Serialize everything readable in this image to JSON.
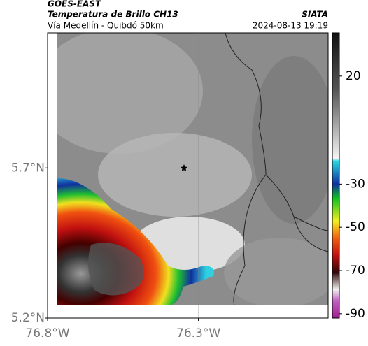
{
  "header": {
    "satellite": "GOES-EAST",
    "product": "Temperatura de Brillo CH13",
    "subtitle": "Vía Medellín - Quibdó 50km",
    "source": "SIATA",
    "timestamp": "2024-08-13 19:19"
  },
  "map": {
    "xlim": [
      -76.8,
      -75.87
    ],
    "ylim": [
      5.2,
      6.15
    ],
    "xticks": [
      {
        "value": -76.8,
        "label": "76.8°W"
      },
      {
        "value": -76.3,
        "label": "76.3°W"
      }
    ],
    "yticks": [
      {
        "value": 5.2,
        "label": "5.2°N"
      },
      {
        "value": 5.7,
        "label": "5.7°N"
      }
    ],
    "grid": true
  },
  "colorbar": {
    "lim": [
      -92,
      40
    ],
    "ticks": [
      20,
      -30,
      -50,
      -70,
      -90
    ]
  }
}
